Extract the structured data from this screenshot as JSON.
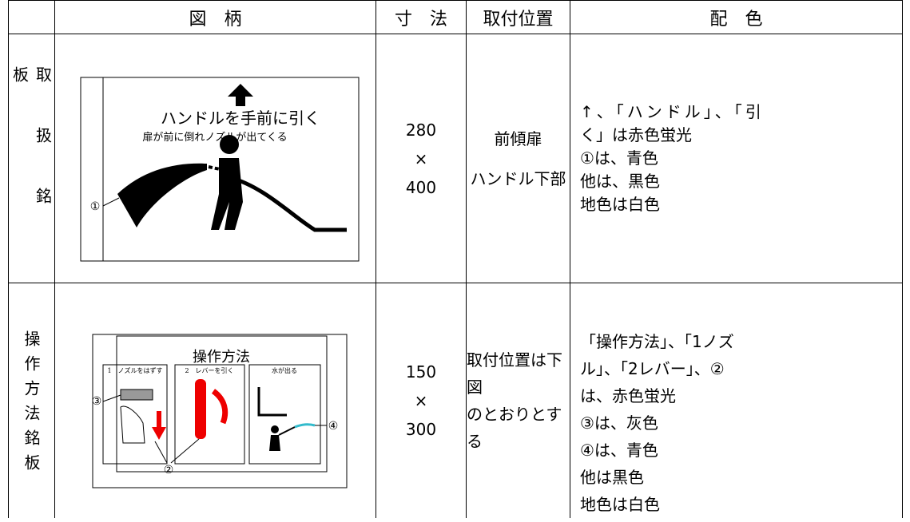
{
  "table": {
    "header": [
      "図　柄",
      "寸　法",
      "取付位置",
      "配　色"
    ],
    "rows": [
      {
        "label": "取扱銘板",
        "figure": {
          "title": "ハンドルを手前に引く",
          "subtitle": "扉が前に倒れノズルが出てくる",
          "callouts": [
            "①"
          ]
        },
        "size": [
          "280",
          "×",
          "400"
        ],
        "position": [
          "前傾扉",
          "ハンドル下部"
        ],
        "colors": [
          "↑、「ハンドル」、「引",
          "く」は赤色蛍光",
          "①は、青色",
          "他は、黒色",
          "地色は白色"
        ]
      },
      {
        "label": "操作方法銘板",
        "figure": {
          "title": "操作方法",
          "panels": [
            "1　ノズルをはずす",
            "2　レバーを引く",
            "水が出る"
          ],
          "callouts": [
            "②",
            "③",
            "④"
          ]
        },
        "size": [
          "150",
          "×",
          "300"
        ],
        "position": [
          "取付位置は下図",
          "のとおりとする"
        ],
        "colors": [
          "「操作方法」、「1ノズ",
          "ル」、「2レバー」、②",
          "は、赤色蛍光",
          "③は、灰色",
          "④は、青色",
          "他は黒色",
          "地色は白色"
        ]
      }
    ]
  }
}
